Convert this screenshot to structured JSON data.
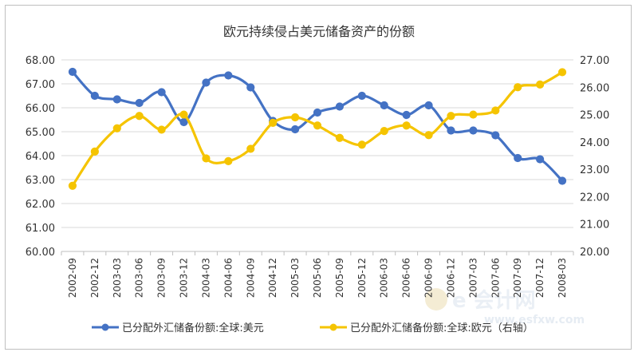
{
  "chart_data": {
    "type": "line",
    "title": "欧元持续侵占美元储备资产的份额",
    "categories": [
      "2002-09",
      "2002-12",
      "2003-03",
      "2003-06",
      "2003-09",
      "2003-12",
      "2004-03",
      "2004-06",
      "2004-09",
      "2004-12",
      "2005-03",
      "2005-06",
      "2005-09",
      "2005-12",
      "2006-03",
      "2006-06",
      "2006-09",
      "2006-12",
      "2007-03",
      "2007-06",
      "2007-09",
      "2007-12",
      "2008-03"
    ],
    "y_left": {
      "min": 60,
      "max": 68,
      "step": 1,
      "tick_labels": [
        "60.00",
        "61.00",
        "62.00",
        "63.00",
        "64.00",
        "65.00",
        "66.00",
        "67.00",
        "68.00"
      ]
    },
    "y_right": {
      "min": 20,
      "max": 27,
      "step": 1,
      "tick_labels": [
        "20.00",
        "21.00",
        "22.00",
        "23.00",
        "24.00",
        "25.00",
        "26.00",
        "27.00"
      ]
    },
    "series": [
      {
        "name": "已分配外汇储备份额:全球:美元",
        "axis": "left",
        "color": "#4472c4",
        "values": [
          67.5,
          66.5,
          66.35,
          66.2,
          66.65,
          65.4,
          67.05,
          67.35,
          66.85,
          65.45,
          65.1,
          65.8,
          66.05,
          66.5,
          66.1,
          65.7,
          66.1,
          65.05,
          65.05,
          64.85,
          63.9,
          63.85,
          62.95
        ]
      },
      {
        "name": "已分配外汇储备份额:全球:欧元（右轴）",
        "axis": "right",
        "color": "#f5c400",
        "values": [
          22.4,
          23.65,
          24.5,
          24.95,
          24.45,
          25.0,
          23.4,
          23.3,
          23.75,
          24.7,
          24.9,
          24.6,
          24.15,
          23.9,
          24.4,
          24.6,
          24.25,
          24.95,
          25.0,
          25.15,
          26.0,
          26.1,
          26.55
        ]
      }
    ]
  },
  "watermark": {
    "main": "e 会计网",
    "sub": "www.esfxw.com"
  }
}
